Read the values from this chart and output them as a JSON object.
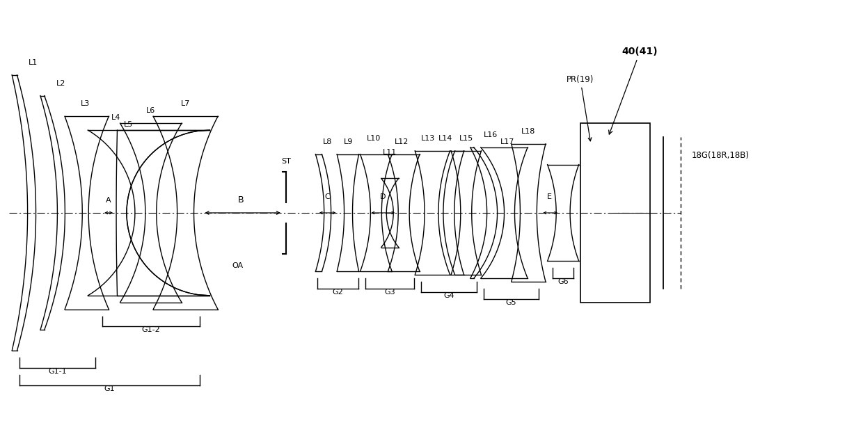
{
  "bg_color": "#ffffff",
  "line_color": "#000000",
  "figsize": [
    12.4,
    6.11
  ],
  "dpi": 100,
  "xlim": [
    0,
    124
  ],
  "ylim": [
    0,
    61.1
  ],
  "oy": 30.5
}
